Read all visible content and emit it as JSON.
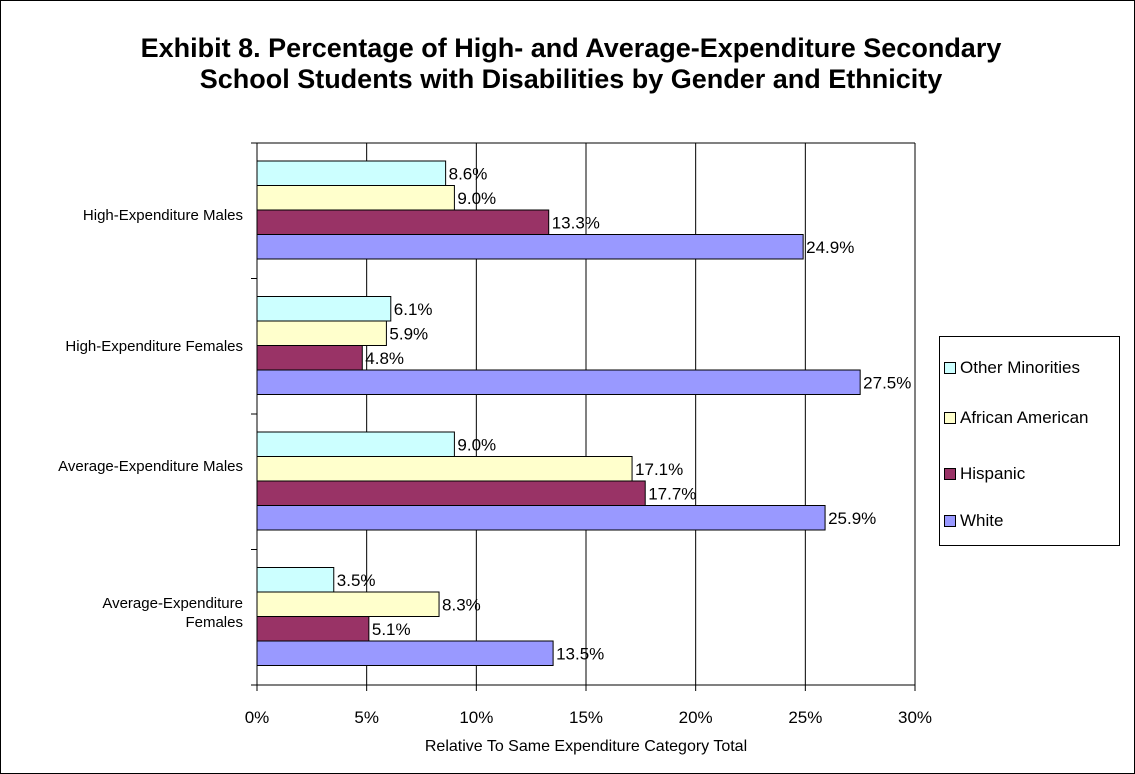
{
  "chart_data": {
    "type": "bar",
    "orientation": "horizontal",
    "title": "Exhibit 8. Percentage of High- and Average-Expenditure Secondary School Students with Disabilities by Gender and Ethnicity",
    "xlabel": "Relative To Same Expenditure Category Total",
    "ylabel": "",
    "xlim": [
      0,
      30
    ],
    "x_ticks": [
      "0%",
      "5%",
      "10%",
      "15%",
      "20%",
      "25%",
      "30%"
    ],
    "grid": "vertical",
    "legend_position": "right",
    "categories": [
      "High-Expenditure Males",
      "High-Expenditure Females",
      "Average-Expenditure Males",
      "Average-Expenditure Females"
    ],
    "series": [
      {
        "name": "Other Minorities",
        "color": "#CCFFFF",
        "values": [
          8.6,
          6.1,
          9.0,
          3.5
        ],
        "labels": [
          "8.6%",
          "6.1%",
          "9.0%",
          "3.5%"
        ]
      },
      {
        "name": "African American",
        "color": "#FFFFCC",
        "values": [
          9.0,
          5.9,
          17.1,
          8.3
        ],
        "labels": [
          "9.0%",
          "5.9%",
          "17.1%",
          "8.3%"
        ]
      },
      {
        "name": "Hispanic",
        "color": "#993366",
        "values": [
          13.3,
          4.8,
          17.7,
          5.1
        ],
        "labels": [
          "13.3%",
          "4.8%",
          "17.7%",
          "5.1%"
        ]
      },
      {
        "name": "White",
        "color": "#9999FF",
        "values": [
          24.9,
          27.5,
          25.9,
          13.5
        ],
        "labels": [
          "24.9%",
          "27.5%",
          "25.9%",
          "13.5%"
        ]
      }
    ]
  }
}
